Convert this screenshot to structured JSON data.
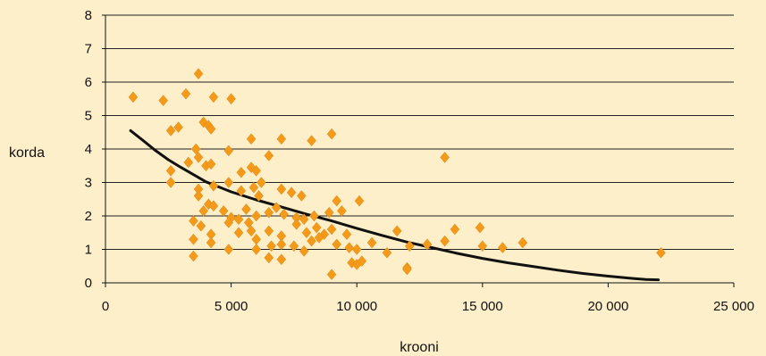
{
  "chart_data": {
    "type": "scatter",
    "xlabel": "krooni",
    "ylabel": "korda",
    "xlim": [
      0,
      25000
    ],
    "ylim": [
      0,
      8
    ],
    "xticks": [
      0,
      5000,
      10000,
      15000,
      20000,
      25000
    ],
    "xtick_labels": [
      "0",
      "5 000",
      "10 000",
      "15 000",
      "20 000",
      "25 000"
    ],
    "yticks": [
      0,
      1,
      2,
      3,
      4,
      5,
      6,
      7,
      8
    ],
    "ytick_labels": [
      "0",
      "1",
      "2",
      "3",
      "4",
      "5",
      "6",
      "7",
      "8"
    ],
    "grid": "horizontal",
    "marker_color": "#f39a1b",
    "trend_color": "#111111",
    "points": [
      [
        1100,
        5.55
      ],
      [
        2300,
        5.45
      ],
      [
        2600,
        4.55
      ],
      [
        2900,
        4.65
      ],
      [
        3200,
        5.65
      ],
      [
        3700,
        6.25
      ],
      [
        3600,
        4.0
      ],
      [
        3700,
        3.75
      ],
      [
        3900,
        4.8
      ],
      [
        4100,
        4.7
      ],
      [
        4200,
        4.6
      ],
      [
        4300,
        5.55
      ],
      [
        5000,
        5.5
      ],
      [
        4900,
        3.95
      ],
      [
        5800,
        4.3
      ],
      [
        7000,
        4.3
      ],
      [
        8200,
        4.25
      ],
      [
        9000,
        4.45
      ],
      [
        13500,
        3.75
      ],
      [
        2600,
        3.35
      ],
      [
        3300,
        3.6
      ],
      [
        4000,
        3.5
      ],
      [
        4200,
        3.55
      ],
      [
        5400,
        3.3
      ],
      [
        5800,
        3.45
      ],
      [
        6000,
        3.35
      ],
      [
        6500,
        3.8
      ],
      [
        2600,
        3.0
      ],
      [
        3700,
        2.8
      ],
      [
        3700,
        2.6
      ],
      [
        4300,
        2.9
      ],
      [
        4900,
        3.0
      ],
      [
        5400,
        2.75
      ],
      [
        5900,
        2.85
      ],
      [
        6200,
        3.0
      ],
      [
        6100,
        2.6
      ],
      [
        7000,
        2.8
      ],
      [
        7400,
        2.7
      ],
      [
        7800,
        2.6
      ],
      [
        9200,
        2.45
      ],
      [
        10100,
        2.45
      ],
      [
        3500,
        1.85
      ],
      [
        3900,
        2.15
      ],
      [
        4100,
        2.35
      ],
      [
        4300,
        2.3
      ],
      [
        4700,
        2.15
      ],
      [
        5000,
        1.95
      ],
      [
        5300,
        1.9
      ],
      [
        5600,
        2.2
      ],
      [
        5700,
        1.8
      ],
      [
        6000,
        2.0
      ],
      [
        6500,
        2.1
      ],
      [
        6800,
        2.25
      ],
      [
        7100,
        2.05
      ],
      [
        7600,
        1.95
      ],
      [
        7900,
        1.9
      ],
      [
        8300,
        2.0
      ],
      [
        8900,
        2.1
      ],
      [
        9400,
        2.15
      ],
      [
        3800,
        1.7
      ],
      [
        4200,
        1.45
      ],
      [
        4900,
        1.8
      ],
      [
        5300,
        1.5
      ],
      [
        5800,
        1.55
      ],
      [
        6000,
        1.3
      ],
      [
        6500,
        1.55
      ],
      [
        7000,
        1.4
      ],
      [
        7600,
        1.75
      ],
      [
        8000,
        1.5
      ],
      [
        8400,
        1.65
      ],
      [
        8700,
        1.45
      ],
      [
        9000,
        1.6
      ],
      [
        9600,
        1.45
      ],
      [
        11600,
        1.55
      ],
      [
        13500,
        1.25
      ],
      [
        13900,
        1.6
      ],
      [
        14900,
        1.65
      ],
      [
        3500,
        1.3
      ],
      [
        4200,
        1.2
      ],
      [
        4900,
        1.0
      ],
      [
        6000,
        1.0
      ],
      [
        6600,
        1.1
      ],
      [
        7000,
        1.15
      ],
      [
        7500,
        1.1
      ],
      [
        7900,
        0.95
      ],
      [
        8200,
        1.25
      ],
      [
        8500,
        1.35
      ],
      [
        9200,
        1.15
      ],
      [
        9700,
        1.05
      ],
      [
        10000,
        1.0
      ],
      [
        10600,
        1.2
      ],
      [
        11200,
        0.9
      ],
      [
        12100,
        1.1
      ],
      [
        12800,
        1.15
      ],
      [
        15000,
        1.1
      ],
      [
        15800,
        1.05
      ],
      [
        16600,
        1.2
      ],
      [
        3500,
        0.8
      ],
      [
        6500,
        0.75
      ],
      [
        7000,
        0.7
      ],
      [
        9800,
        0.6
      ],
      [
        10000,
        0.55
      ],
      [
        10200,
        0.65
      ],
      [
        12000,
        0.45
      ],
      [
        9000,
        0.25
      ],
      [
        22100,
        0.9
      ],
      [
        12000,
        0.4
      ]
    ],
    "trend": [
      [
        1000,
        4.55
      ],
      [
        1500,
        4.25
      ],
      [
        2000,
        3.95
      ],
      [
        2500,
        3.68
      ],
      [
        3000,
        3.45
      ],
      [
        4000,
        3.02
      ],
      [
        5000,
        2.72
      ],
      [
        6000,
        2.48
      ],
      [
        7000,
        2.27
      ],
      [
        8000,
        2.05
      ],
      [
        9000,
        1.85
      ],
      [
        10000,
        1.63
      ],
      [
        11000,
        1.42
      ],
      [
        12000,
        1.22
      ],
      [
        13000,
        1.05
      ],
      [
        14000,
        0.88
      ],
      [
        15000,
        0.73
      ],
      [
        16000,
        0.6
      ],
      [
        17000,
        0.49
      ],
      [
        18000,
        0.38
      ],
      [
        19000,
        0.28
      ],
      [
        20000,
        0.2
      ],
      [
        21000,
        0.13
      ],
      [
        21500,
        0.1
      ],
      [
        22000,
        0.09
      ]
    ]
  }
}
